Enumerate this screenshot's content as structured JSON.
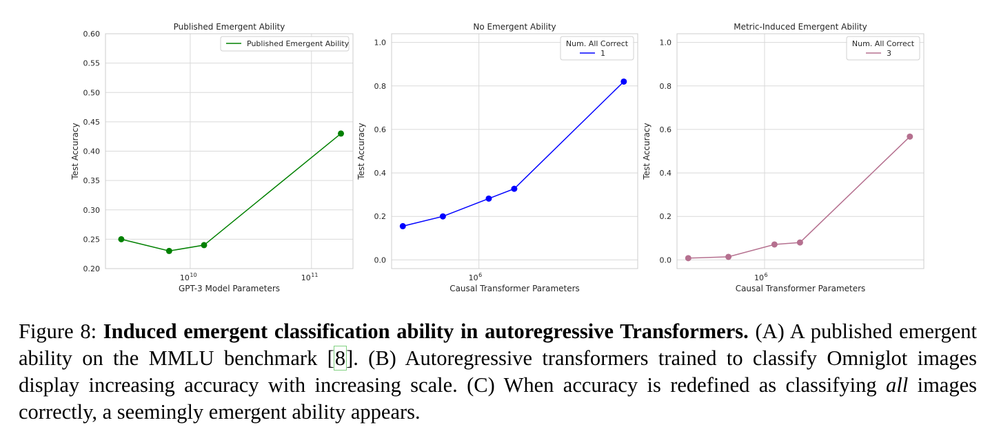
{
  "chart_data": [
    {
      "type": "line",
      "title": "Published Emergent Ability",
      "xlabel": "GPT-3 Model Parameters",
      "ylabel": "Test Accuracy",
      "xscale": "log",
      "xlim": [
        2000000000,
        220000000000
      ],
      "ylim": [
        0.2,
        0.6
      ],
      "yticks": [
        0.2,
        0.25,
        0.3,
        0.35,
        0.4,
        0.45,
        0.5,
        0.55,
        0.6
      ],
      "ytick_labels": [
        "0.20",
        "0.25",
        "0.30",
        "0.35",
        "0.40",
        "0.45",
        "0.50",
        "0.55",
        "0.60"
      ],
      "xticks": [
        10000000000,
        100000000000
      ],
      "xtick_labels": [
        {
          "base": "10",
          "exp": "10"
        },
        {
          "base": "10",
          "exp": "11"
        }
      ],
      "legend_title": "",
      "legend_placement": "top-right",
      "series": [
        {
          "name": "Published Emergent Ability",
          "color": "#008000",
          "x": [
            2700000000,
            6700000000,
            13000000000,
            175000000000
          ],
          "y": [
            0.25,
            0.23,
            0.24,
            0.43
          ]
        }
      ]
    },
    {
      "type": "line",
      "title": "No Emergent Ability",
      "xlabel": "Causal Transformer Parameters",
      "ylabel": "Test Accuracy",
      "xscale": "log",
      "xlim": [
        290000,
        9500000
      ],
      "ylim": [
        -0.04,
        1.04
      ],
      "yticks": [
        0.0,
        0.2,
        0.4,
        0.6,
        0.8,
        1.0
      ],
      "ytick_labels": [
        "0.0",
        "0.2",
        "0.4",
        "0.6",
        "0.8",
        "1.0"
      ],
      "xticks": [
        1000000
      ],
      "xtick_labels": [
        {
          "base": "10",
          "exp": "6"
        }
      ],
      "legend_title": "Num. All Correct",
      "legend_placement": "top-right",
      "series": [
        {
          "name": "1",
          "color": "#0000ff",
          "x": [
            340000,
            600000,
            1150000,
            1650000,
            7800000
          ],
          "y": [
            0.155,
            0.2,
            0.282,
            0.327,
            0.82
          ]
        }
      ]
    },
    {
      "type": "line",
      "title": "Metric-Induced Emergent Ability",
      "xlabel": "Causal Transformer Parameters",
      "ylabel": "Test Accuracy",
      "xscale": "log",
      "xlim": [
        290000,
        9500000
      ],
      "ylim": [
        -0.04,
        1.04
      ],
      "yticks": [
        0.0,
        0.2,
        0.4,
        0.6,
        0.8,
        1.0
      ],
      "ytick_labels": [
        "0.0",
        "0.2",
        "0.4",
        "0.6",
        "0.8",
        "1.0"
      ],
      "xticks": [
        1000000
      ],
      "xtick_labels": [
        {
          "base": "10",
          "exp": "6"
        }
      ],
      "legend_title": "Num. All Correct",
      "legend_placement": "top-right",
      "series": [
        {
          "name": "3",
          "color": "#b5708f",
          "x": [
            340000,
            600000,
            1150000,
            1650000,
            7800000
          ],
          "y": [
            0.008,
            0.014,
            0.071,
            0.08,
            0.567
          ]
        }
      ]
    }
  ],
  "caption": {
    "label": "Figure 8:",
    "bold": "Induced emergent classification ability in autoregressive Transformers.",
    "part1": "(A) A published emergent ability on the MMLU benchmark [",
    "cite": "8",
    "part2": "]. (B) Autoregressive transformers trained to classify Omniglot images display increasing accuracy with increasing scale. (C) When accuracy is redefined as classifying",
    "italic": "all",
    "part3": "images correctly, a seemingly emergent ability appears."
  }
}
